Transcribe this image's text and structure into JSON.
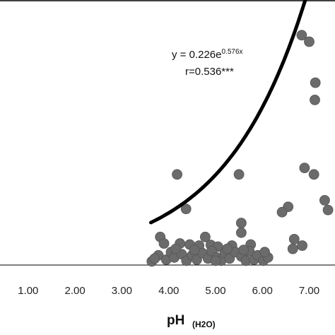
{
  "chart_data": {
    "type": "scatter",
    "xlim": [
      0.4,
      7.55
    ],
    "ylim": [
      -0.15,
      12.1
    ],
    "x_ticks": [
      "1.00",
      "2.00",
      "3.00",
      "4.00",
      "5.00",
      "6.00",
      "7.00"
    ],
    "x_tick_values": [
      1,
      2,
      3,
      4,
      5,
      6,
      7
    ],
    "xlabel": "pH",
    "xlabel_sub": "(H2O)",
    "equation": {
      "prefix": "y = 0.226e",
      "exponent": "0.576x",
      "r_text": "r=0.536***",
      "a": 0.226,
      "b": 0.576
    },
    "trend_x_range": [
      3.62,
      7.55
    ],
    "points": [
      [
        6.84,
        10.5
      ],
      [
        7.0,
        10.2
      ],
      [
        7.13,
        8.3
      ],
      [
        7.12,
        7.5
      ],
      [
        6.9,
        4.35
      ],
      [
        7.1,
        4.05
      ],
      [
        4.18,
        4.05
      ],
      [
        5.5,
        4.05
      ],
      [
        4.37,
        2.45
      ],
      [
        6.55,
        2.55
      ],
      [
        6.42,
        2.3
      ],
      [
        7.33,
        2.85
      ],
      [
        7.4,
        2.4
      ],
      [
        5.55,
        1.8
      ],
      [
        5.55,
        1.35
      ],
      [
        3.82,
        1.15
      ],
      [
        4.78,
        1.15
      ],
      [
        6.68,
        1.05
      ],
      [
        6.85,
        0.75
      ],
      [
        3.9,
        0.85
      ],
      [
        4.24,
        0.85
      ],
      [
        4.45,
        0.8
      ],
      [
        4.65,
        0.75
      ],
      [
        4.9,
        0.78
      ],
      [
        5.05,
        0.7
      ],
      [
        5.35,
        0.75
      ],
      [
        5.75,
        0.8
      ],
      [
        6.65,
        0.6
      ],
      [
        3.64,
        0.02
      ],
      [
        3.78,
        0.3
      ],
      [
        3.95,
        0.1
      ],
      [
        4.05,
        0.45
      ],
      [
        4.12,
        0.2
      ],
      [
        4.28,
        0.35
      ],
      [
        4.38,
        0.05
      ],
      [
        4.5,
        0.3
      ],
      [
        4.6,
        0.1
      ],
      [
        4.72,
        0.4
      ],
      [
        4.84,
        0.15
      ],
      [
        4.92,
        0.5
      ],
      [
        5.02,
        0.2
      ],
      [
        5.12,
        0.05
      ],
      [
        5.2,
        0.4
      ],
      [
        5.3,
        0.15
      ],
      [
        5.42,
        0.45
      ],
      [
        5.55,
        0.25
      ],
      [
        5.65,
        0.05
      ],
      [
        5.72,
        0.5
      ],
      [
        5.82,
        0.1
      ],
      [
        5.9,
        0.3
      ],
      [
        6.02,
        0.05
      ],
      [
        6.12,
        0.2
      ],
      [
        3.7,
        0.15
      ],
      [
        4.15,
        0.6
      ],
      [
        4.55,
        0.55
      ],
      [
        5.0,
        0.05
      ],
      [
        5.25,
        0.6
      ],
      [
        5.6,
        0.55
      ],
      [
        6.05,
        0.45
      ]
    ]
  }
}
